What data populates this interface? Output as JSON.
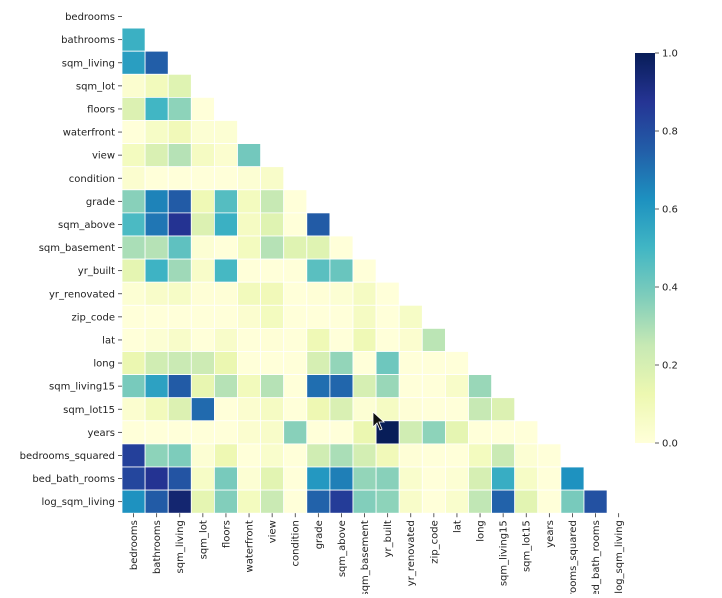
{
  "chart_data": {
    "type": "heatmap",
    "variables": [
      "bedrooms",
      "bathrooms",
      "sqm_living",
      "sqm_lot",
      "floors",
      "waterfront",
      "view",
      "condition",
      "grade",
      "sqm_above",
      "sqm_basement",
      "yr_built",
      "yr_renovated",
      "zip_code",
      "lat",
      "long",
      "sqm_living15",
      "sqm_lot15",
      "years",
      "bedrooms_squared",
      "bed_bath_rooms",
      "log_sqm_living"
    ],
    "matrix_lower_triangle": [
      [],
      [
        0.52
      ],
      [
        0.58,
        0.75
      ],
      [
        0.03,
        0.09,
        0.17
      ],
      [
        0.18,
        0.5,
        0.35,
        -0.01
      ],
      [
        -0.01,
        0.06,
        0.1,
        0.02,
        0.02
      ],
      [
        0.08,
        0.19,
        0.28,
        0.07,
        0.03,
        0.4
      ],
      [
        0.03,
        -0.12,
        -0.06,
        -0.01,
        -0.26,
        0.02,
        0.05
      ],
      [
        0.36,
        0.66,
        0.76,
        0.11,
        0.46,
        0.08,
        0.25,
        -0.14
      ],
      [
        0.48,
        0.69,
        0.88,
        0.18,
        0.52,
        0.07,
        0.17,
        -0.16,
        0.76
      ],
      [
        0.3,
        0.28,
        0.44,
        0.02,
        -0.25,
        0.08,
        0.28,
        0.17,
        0.17,
        -0.05
      ],
      [
        0.15,
        0.51,
        0.32,
        0.05,
        0.49,
        -0.03,
        -0.05,
        -0.36,
        0.45,
        0.42,
        -0.13
      ],
      [
        0.02,
        0.05,
        0.06,
        0.01,
        0.01,
        0.09,
        0.1,
        -0.06,
        0.01,
        0.02,
        0.07,
        -0.22
      ],
      [
        -0.15,
        -0.2,
        -0.2,
        -0.13,
        -0.06,
        0.03,
        0.08,
        0.0,
        -0.18,
        -0.26,
        0.07,
        -0.35,
        0.06
      ],
      [
        -0.01,
        0.02,
        0.05,
        -0.09,
        0.05,
        -0.01,
        0.01,
        -0.01,
        0.11,
        -0.0,
        0.11,
        -0.15,
        0.03,
        0.27
      ],
      [
        0.13,
        0.22,
        0.24,
        0.23,
        0.13,
        -0.04,
        -0.08,
        -0.11,
        0.2,
        0.34,
        -0.14,
        0.41,
        -0.07,
        -0.56,
        -0.14
      ],
      [
        0.39,
        0.57,
        0.76,
        0.14,
        0.28,
        0.09,
        0.28,
        -0.09,
        0.71,
        0.73,
        0.2,
        0.33,
        -0.0,
        -0.28,
        0.05,
        0.33
      ],
      [
        0.03,
        0.09,
        0.18,
        0.72,
        -0.01,
        0.03,
        0.07,
        -0.0,
        0.12,
        0.19,
        0.02,
        0.07,
        0.01,
        -0.15,
        -0.09,
        0.25,
        0.18
      ],
      [
        -0.15,
        -0.51,
        -0.32,
        -0.05,
        -0.49,
        0.03,
        0.05,
        0.36,
        -0.45,
        -0.42,
        0.13,
        1.0,
        0.22,
        0.35,
        0.15,
        -0.41,
        -0.33,
        -0.07
      ],
      [
        0.84,
        0.35,
        0.38,
        0.02,
        0.12,
        -0.02,
        0.04,
        0.0,
        0.22,
        0.3,
        0.21,
        0.1,
        0.01,
        -0.1,
        -0.02,
        0.08,
        0.24,
        0.02,
        -0.1
      ],
      [
        0.82,
        0.88,
        0.78,
        0.06,
        0.39,
        0.02,
        0.16,
        -0.04,
        0.6,
        0.67,
        0.34,
        0.36,
        0.04,
        -0.19,
        0.02,
        0.2,
        0.53,
        0.06,
        -0.36,
        0.62
      ],
      [
        0.62,
        0.76,
        0.95,
        0.15,
        0.37,
        0.08,
        0.24,
        -0.05,
        0.74,
        0.85,
        0.37,
        0.35,
        0.05,
        -0.21,
        0.04,
        0.26,
        0.74,
        0.16,
        -0.35,
        0.39,
        0.79
      ]
    ],
    "colorbar": {
      "min": 0.0,
      "max": 1.0,
      "ticks": [
        "0.0",
        "0.2",
        "0.4",
        "0.6",
        "0.8",
        "1.0"
      ]
    },
    "colormap": [
      "#ffffd9",
      "#edf8b1",
      "#c7e9b4",
      "#7fcdbb",
      "#41b6c4",
      "#1d91c0",
      "#225ea8",
      "#253494",
      "#081d58"
    ],
    "title": "",
    "xlabel": "",
    "ylabel": ""
  }
}
